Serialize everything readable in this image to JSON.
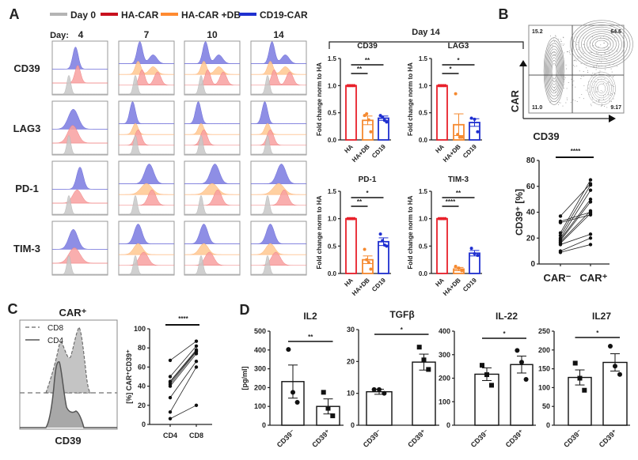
{
  "panel_labels": {
    "a": "A",
    "b": "B",
    "c": "C",
    "d": "D"
  },
  "panel_a": {
    "legend": [
      {
        "label": "Day 0",
        "color": "#b4b4b4"
      },
      {
        "label": "HA-CAR",
        "color": "#c8101e"
      },
      {
        "label": "HA-CAR +DB",
        "color": "#ff8a30"
      },
      {
        "label": "CD19-CAR",
        "color": "#1f30d0"
      }
    ],
    "day_prefix": "Day:",
    "days": [
      "4",
      "7",
      "10",
      "14"
    ],
    "markers": [
      "CD39",
      "LAG3",
      "PD-1",
      "TIM-3"
    ],
    "day14_label": "Day 14"
  },
  "panel_b": {
    "flow": {
      "x_label": "CD39",
      "y_label": "CAR",
      "quadrants": [
        "15.2",
        "64.6",
        "11.0",
        "9.17"
      ]
    }
  },
  "panel_c": {
    "hist": {
      "title": "CAR⁺",
      "legend": [
        "CD8",
        "CD4"
      ],
      "x_label": "CD39"
    }
  },
  "chart_data": [
    {
      "type": "bar",
      "title": "CD39",
      "ylabel": "Fold change norm to HA",
      "ylim": [
        0,
        1.5
      ],
      "yticks": [
        "0.0",
        "0.5",
        "1.0",
        "1.5"
      ],
      "categories": [
        "HA",
        "HA+DB",
        "CD19"
      ],
      "series": [
        {
          "mean": 1.0,
          "sem": 0,
          "points": [
            1,
            1,
            1,
            1
          ]
        },
        {
          "mean": 0.36,
          "sem": 0.08,
          "points": [
            0.45,
            0.48,
            0.37,
            0.15
          ]
        },
        {
          "mean": 0.4,
          "sem": 0.04,
          "points": [
            0.45,
            0.42,
            0.36,
            0.33
          ]
        }
      ],
      "significance": [
        {
          "groups": [
            0,
            2
          ],
          "label": "**"
        },
        {
          "groups": [
            0,
            1
          ],
          "label": "**"
        }
      ]
    },
    {
      "type": "bar",
      "title": "LAG3",
      "ylabel": "Fold change norm to HA",
      "ylim": [
        0,
        1.5
      ],
      "yticks": [
        "0.0",
        "0.5",
        "1.0",
        "1.5"
      ],
      "categories": [
        "HA",
        "HA+DB",
        "CD19"
      ],
      "series": [
        {
          "mean": 1.0,
          "sem": 0,
          "points": [
            1,
            1,
            1,
            1
          ]
        },
        {
          "mean": 0.28,
          "sem": 0.2,
          "points": [
            0.85,
            0.1,
            0.05,
            0.05
          ]
        },
        {
          "mean": 0.32,
          "sem": 0.07,
          "points": [
            0.4,
            0.38,
            0.15
          ]
        }
      ],
      "significance": [
        {
          "groups": [
            0,
            2
          ],
          "label": "*"
        },
        {
          "groups": [
            0,
            1
          ],
          "label": "*"
        }
      ]
    },
    {
      "type": "bar",
      "title": "PD-1",
      "ylabel": "Fold change norm to HA",
      "ylim": [
        0,
        1.5
      ],
      "yticks": [
        "0.0",
        "0.5",
        "1.0",
        "1.5"
      ],
      "categories": [
        "HA",
        "HA+DB",
        "CD19"
      ],
      "series": [
        {
          "mean": 1.0,
          "sem": 0,
          "points": [
            1,
            1,
            1,
            1
          ]
        },
        {
          "mean": 0.25,
          "sem": 0.07,
          "points": [
            0.44,
            0.25,
            0.2,
            0.08
          ]
        },
        {
          "mean": 0.58,
          "sem": 0.07,
          "points": [
            0.72,
            0.6,
            0.52,
            0.5
          ]
        }
      ],
      "significance": [
        {
          "groups": [
            0,
            2
          ],
          "label": "*"
        },
        {
          "groups": [
            0,
            1
          ],
          "label": "**"
        }
      ]
    },
    {
      "type": "bar",
      "title": "TIM-3",
      "ylabel": "Fold change norm to HA",
      "ylim": [
        0,
        1.5
      ],
      "yticks": [
        "0.0",
        "0.5",
        "1.0",
        "1.5"
      ],
      "categories": [
        "HA",
        "HA+DB",
        "CD19"
      ],
      "series": [
        {
          "mean": 1.0,
          "sem": 0,
          "points": [
            1,
            1,
            1,
            1
          ]
        },
        {
          "mean": 0.08,
          "sem": 0.03,
          "points": [
            0.13,
            0.1,
            0.05
          ]
        },
        {
          "mean": 0.37,
          "sem": 0.05,
          "points": [
            0.46,
            0.36,
            0.33
          ]
        }
      ],
      "significance": [
        {
          "groups": [
            0,
            2
          ],
          "label": "**"
        },
        {
          "groups": [
            0,
            1
          ],
          "label": "****"
        }
      ]
    },
    {
      "type": "line",
      "subtype": "paired",
      "ylabel": "CD39⁺ [%]",
      "ylim": [
        0,
        80
      ],
      "yticks": [
        "0",
        "20",
        "40",
        "60",
        "80"
      ],
      "categories": [
        "CAR⁻",
        "CAR⁺"
      ],
      "pairs": [
        [
          37,
          62
        ],
        [
          33,
          40
        ],
        [
          32,
          38
        ],
        [
          24,
          65
        ],
        [
          22,
          61
        ],
        [
          20,
          57
        ],
        [
          19,
          50
        ],
        [
          18,
          48
        ],
        [
          17,
          41
        ],
        [
          16,
          39
        ],
        [
          15,
          23
        ],
        [
          10,
          20
        ],
        [
          9,
          15
        ]
      ],
      "significance": {
        "label": "****"
      }
    },
    {
      "type": "line",
      "subtype": "paired",
      "ylabel": "[%] CAR⁺CD39⁺",
      "ylim": [
        0,
        100
      ],
      "yticks": [
        "0",
        "20",
        "40",
        "60",
        "80",
        "100"
      ],
      "categories": [
        "CD4",
        "CD8"
      ],
      "pairs": [
        [
          67,
          87
        ],
        [
          50,
          82
        ],
        [
          45,
          78
        ],
        [
          44,
          77
        ],
        [
          42,
          76
        ],
        [
          40,
          74
        ],
        [
          28,
          66
        ],
        [
          13,
          60
        ],
        [
          6,
          20
        ]
      ],
      "significance": {
        "label": "****"
      }
    },
    {
      "type": "bar",
      "title": "IL2",
      "ylabel": "[pg/ml]",
      "ylim": [
        0,
        500
      ],
      "yticks": [
        "0",
        "100",
        "200",
        "300",
        "400",
        "500"
      ],
      "categories": [
        "CD39⁻",
        "CD39⁺"
      ],
      "series": [
        {
          "mean": 232,
          "sem": 88,
          "marker": "circle",
          "points": [
            403,
            175,
            122
          ]
        },
        {
          "mean": 100,
          "sem": 40,
          "marker": "square",
          "points": [
            175,
            90,
            50
          ]
        }
      ],
      "significance": [
        {
          "groups": [
            0,
            1
          ],
          "label": "**"
        }
      ]
    },
    {
      "type": "bar",
      "title": "TGFβ",
      "ylabel": "",
      "ylim": [
        0,
        30
      ],
      "yticks": [
        "0",
        "10",
        "20",
        "30"
      ],
      "categories": [
        "CD39⁻",
        "CD39⁺"
      ],
      "series": [
        {
          "mean": 10.5,
          "sem": 0.8,
          "marker": "circle",
          "points": [
            11.2,
            11.2,
            10.0
          ]
        },
        {
          "mean": 19.8,
          "sem": 2.5,
          "marker": "square",
          "points": [
            24.5,
            20.5,
            17.5
          ]
        }
      ],
      "significance": [
        {
          "groups": [
            0,
            1
          ],
          "label": "*"
        }
      ]
    },
    {
      "type": "bar",
      "title": "IL-22",
      "ylabel": "",
      "ylim": [
        0,
        400
      ],
      "yticks": [
        "0",
        "100",
        "200",
        "300",
        "400"
      ],
      "categories": [
        "CD39⁻",
        "CD39⁺"
      ],
      "series": [
        {
          "mean": 217,
          "sem": 27,
          "marker": "square",
          "points": [
            255,
            215,
            170
          ]
        },
        {
          "mean": 258,
          "sem": 36,
          "marker": "circle",
          "points": [
            318,
            268,
            195
          ]
        }
      ],
      "significance": [
        {
          "groups": [
            0,
            1
          ],
          "label": "*"
        }
      ]
    },
    {
      "type": "bar",
      "title": "IL27",
      "ylabel": "",
      "ylim": [
        0,
        250
      ],
      "yticks": [
        "0",
        "50",
        "100",
        "150",
        "200",
        "250"
      ],
      "categories": [
        "CD39⁻",
        "CD39⁺"
      ],
      "series": [
        {
          "mean": 127,
          "sem": 20,
          "marker": "square",
          "points": [
            165,
            125,
            93
          ]
        },
        {
          "mean": 167,
          "sem": 23,
          "marker": "circle",
          "points": [
            210,
            157,
            135
          ]
        }
      ],
      "significance": [
        {
          "groups": [
            0,
            1
          ],
          "label": "*"
        }
      ]
    }
  ]
}
